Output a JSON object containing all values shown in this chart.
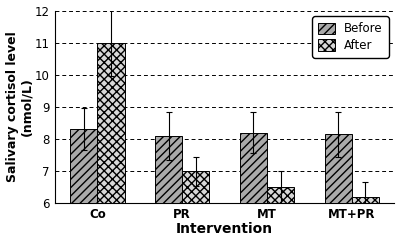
{
  "categories": [
    "Co",
    "PR",
    "MT",
    "MT+PR"
  ],
  "before_values": [
    8.3,
    8.1,
    8.2,
    8.15
  ],
  "after_values": [
    11.0,
    7.0,
    6.5,
    6.2
  ],
  "before_errors": [
    0.65,
    0.75,
    0.65,
    0.7
  ],
  "after_errors": [
    1.05,
    0.45,
    0.5,
    0.45
  ],
  "ylabel": "Salivary cortisol level\n(nmol/L)",
  "xlabel": "Intervention",
  "ylim": [
    6,
    12
  ],
  "yticks": [
    6,
    7,
    8,
    9,
    10,
    11,
    12
  ],
  "legend_labels": [
    "Before",
    "After"
  ],
  "bar_width": 0.32,
  "background_color": "#ffffff",
  "before_hatch": "////",
  "after_hatch": "xxxx",
  "before_facecolor": "#aaaaaa",
  "after_facecolor": "#d8d8d8",
  "grid_color": "#000000",
  "axis_fontsize": 9,
  "tick_fontsize": 8.5,
  "legend_fontsize": 8.5
}
